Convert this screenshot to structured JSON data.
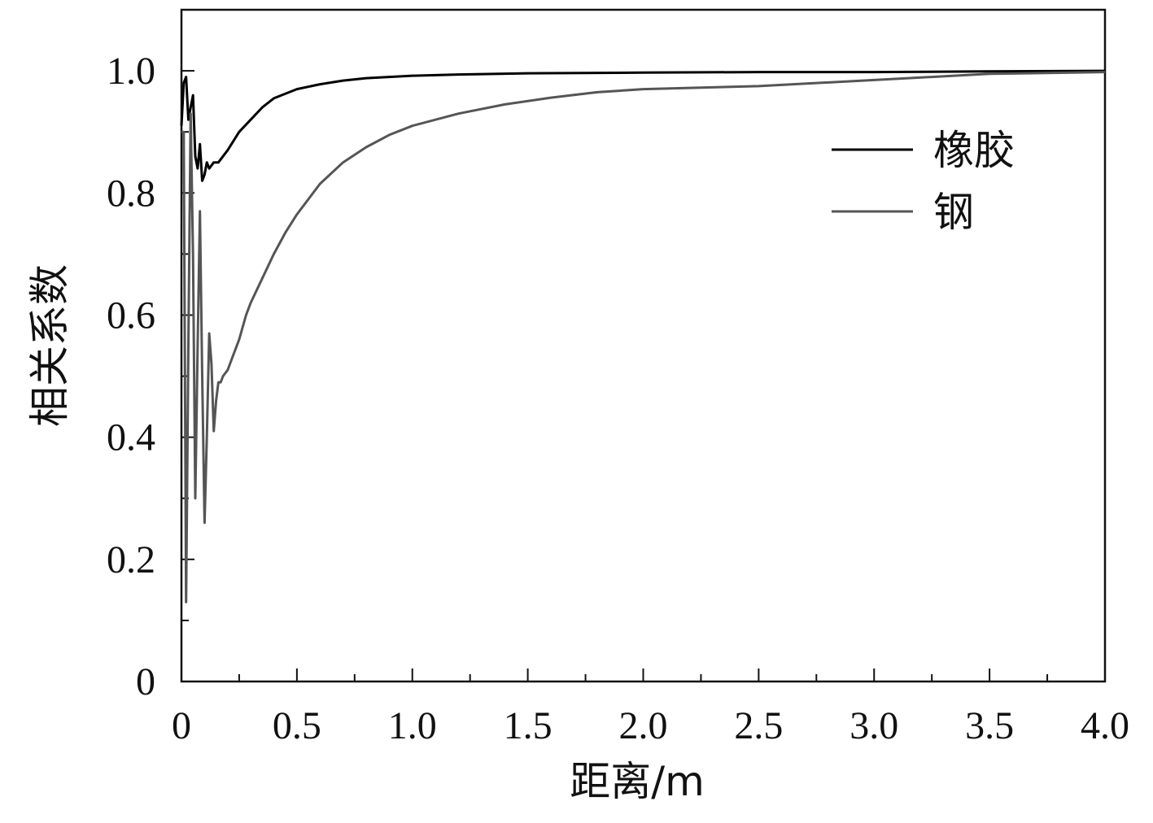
{
  "chart_data": {
    "type": "line",
    "xlabel": "距离/m",
    "ylabel": "相关系数",
    "xlim": [
      0,
      4.0
    ],
    "ylim": [
      0,
      1.1
    ],
    "x_ticks": [
      "0",
      "0.5",
      "1.0",
      "1.5",
      "2.0",
      "2.5",
      "3.0",
      "3.5",
      "4.0"
    ],
    "y_ticks": [
      "0",
      "0.2",
      "0.4",
      "0.6",
      "0.8",
      "1.0"
    ],
    "legend_position": "top-right",
    "grid": false,
    "series": [
      {
        "name": "橡胶",
        "color": "#000000",
        "points": [
          [
            0.0,
            0.91
          ],
          [
            0.01,
            0.98
          ],
          [
            0.02,
            0.99
          ],
          [
            0.03,
            0.92
          ],
          [
            0.04,
            0.94
          ],
          [
            0.05,
            0.96
          ],
          [
            0.06,
            0.86
          ],
          [
            0.07,
            0.84
          ],
          [
            0.08,
            0.88
          ],
          [
            0.09,
            0.82
          ],
          [
            0.1,
            0.83
          ],
          [
            0.11,
            0.85
          ],
          [
            0.12,
            0.84
          ],
          [
            0.14,
            0.85
          ],
          [
            0.16,
            0.85
          ],
          [
            0.18,
            0.86
          ],
          [
            0.2,
            0.87
          ],
          [
            0.25,
            0.9
          ],
          [
            0.3,
            0.92
          ],
          [
            0.35,
            0.94
          ],
          [
            0.4,
            0.955
          ],
          [
            0.5,
            0.97
          ],
          [
            0.6,
            0.978
          ],
          [
            0.7,
            0.984
          ],
          [
            0.8,
            0.988
          ],
          [
            1.0,
            0.992
          ],
          [
            1.2,
            0.994
          ],
          [
            1.5,
            0.996
          ],
          [
            2.0,
            0.997
          ],
          [
            2.5,
            0.998
          ],
          [
            3.0,
            0.998
          ],
          [
            3.5,
            0.999
          ],
          [
            4.0,
            1.0
          ]
        ]
      },
      {
        "name": "钢",
        "color": "#555555",
        "points": [
          [
            0.0,
            0.9
          ],
          [
            0.01,
            0.9
          ],
          [
            0.02,
            0.13
          ],
          [
            0.03,
            0.55
          ],
          [
            0.04,
            0.93
          ],
          [
            0.05,
            0.7
          ],
          [
            0.06,
            0.3
          ],
          [
            0.07,
            0.55
          ],
          [
            0.08,
            0.77
          ],
          [
            0.09,
            0.5
          ],
          [
            0.1,
            0.26
          ],
          [
            0.11,
            0.4
          ],
          [
            0.12,
            0.57
          ],
          [
            0.13,
            0.52
          ],
          [
            0.14,
            0.41
          ],
          [
            0.15,
            0.46
          ],
          [
            0.16,
            0.49
          ],
          [
            0.17,
            0.49
          ],
          [
            0.18,
            0.5
          ],
          [
            0.2,
            0.51
          ],
          [
            0.22,
            0.53
          ],
          [
            0.25,
            0.56
          ],
          [
            0.28,
            0.6
          ],
          [
            0.3,
            0.62
          ],
          [
            0.35,
            0.66
          ],
          [
            0.4,
            0.7
          ],
          [
            0.45,
            0.735
          ],
          [
            0.5,
            0.765
          ],
          [
            0.6,
            0.815
          ],
          [
            0.7,
            0.85
          ],
          [
            0.8,
            0.875
          ],
          [
            0.9,
            0.895
          ],
          [
            1.0,
            0.91
          ],
          [
            1.2,
            0.93
          ],
          [
            1.4,
            0.945
          ],
          [
            1.6,
            0.956
          ],
          [
            1.8,
            0.965
          ],
          [
            2.0,
            0.97
          ],
          [
            2.5,
            0.975
          ],
          [
            3.0,
            0.985
          ],
          [
            3.5,
            0.995
          ],
          [
            4.0,
            0.998
          ]
        ]
      }
    ]
  }
}
